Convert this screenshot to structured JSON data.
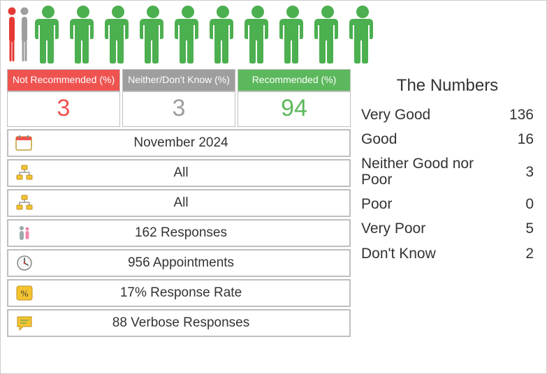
{
  "colors": {
    "not_recommended": "#ef5350",
    "neither": "#9e9e9e",
    "recommended": "#5cb85c",
    "person_green": "#4caf50",
    "person_red": "#e53935",
    "person_gray": "#9e9e9e",
    "border": "#bfbfbf",
    "text": "#333333"
  },
  "people": {
    "small_count": 2,
    "small_colors": [
      "#e53935",
      "#9e9e9e"
    ],
    "full_count": 10,
    "full_color": "#4caf50"
  },
  "segments": [
    {
      "label": "Not Recommended (%)",
      "value": "3",
      "bg": "#ef5350",
      "val_color": "#ef5350"
    },
    {
      "label": "Neither/Don't Know (%)",
      "value": "3",
      "bg": "#9e9e9e",
      "val_color": "#9e9e9e"
    },
    {
      "label": "Recommended (%)",
      "value": "94",
      "bg": "#5cb85c",
      "val_color": "#5cb85c"
    }
  ],
  "stats": [
    {
      "icon": "calendar",
      "text": "November 2024"
    },
    {
      "icon": "org",
      "text": "All"
    },
    {
      "icon": "org",
      "text": "All"
    },
    {
      "icon": "people",
      "text": "162 Responses"
    },
    {
      "icon": "clock",
      "text": "956 Appointments"
    },
    {
      "icon": "percent",
      "text": "17% Response Rate"
    },
    {
      "icon": "chat",
      "text": "88 Verbose Responses"
    }
  ],
  "numbers_title": "The Numbers",
  "numbers": [
    {
      "label": "Very Good",
      "value": "136"
    },
    {
      "label": "Good",
      "value": "16"
    },
    {
      "label": "Neither Good nor Poor",
      "value": "3"
    },
    {
      "label": "Poor",
      "value": "0"
    },
    {
      "label": "Very Poor",
      "value": "5"
    },
    {
      "label": "Don't Know",
      "value": "2"
    }
  ]
}
